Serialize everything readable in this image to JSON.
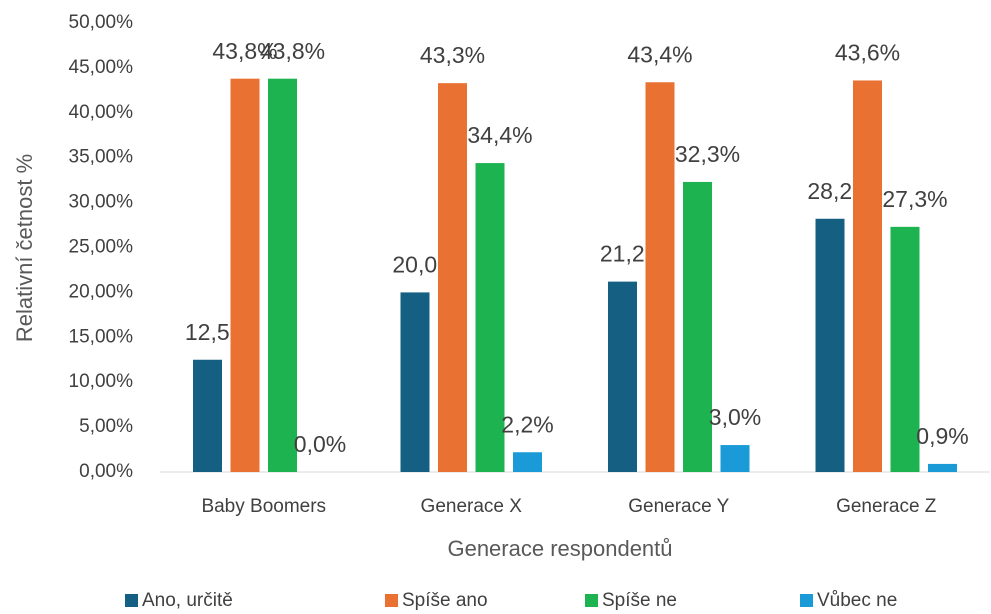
{
  "chart_data": {
    "type": "bar",
    "x_label": "Generace respondentů",
    "y_label": "Relativní četnost %",
    "categories": [
      "Baby Boomers",
      "Generace X",
      "Generace Y",
      "Generace Z"
    ],
    "series": [
      {
        "name": "Ano, určitě",
        "color": "#156082",
        "values": [
          12.5,
          20.0,
          21.2,
          28.2
        ],
        "value_labels": [
          "12,5%",
          "20,0%",
          "21,2%",
          "28,2%"
        ]
      },
      {
        "name": "Spíše ano",
        "color": "#e97132",
        "values": [
          43.8,
          43.3,
          43.4,
          43.6
        ],
        "value_labels": [
          "43,8%",
          "43,3%",
          "43,4%",
          "43,6%"
        ]
      },
      {
        "name": "Spíše ne",
        "color": "#1db351",
        "values": [
          43.8,
          34.4,
          32.3,
          27.3
        ],
        "value_labels": [
          "43,8%",
          "34,4%",
          "32,3%",
          "27,3%"
        ]
      },
      {
        "name": "Vůbec ne",
        "color": "#1a9bd7",
        "values": [
          0.0,
          2.2,
          3.0,
          0.9
        ],
        "value_labels": [
          "0,0%",
          "2,2%",
          "3,0%",
          "0,9%"
        ]
      }
    ],
    "ylim": [
      0,
      50
    ],
    "yticks": [
      {
        "value": 0,
        "label": "0,00%"
      },
      {
        "value": 5,
        "label": "5,00%"
      },
      {
        "value": 10,
        "label": "10,00%"
      },
      {
        "value": 15,
        "label": "15,00%"
      },
      {
        "value": 20,
        "label": "20,00%"
      },
      {
        "value": 25,
        "label": "25,00%"
      },
      {
        "value": 30,
        "label": "30,00%"
      },
      {
        "value": 35,
        "label": "35,00%"
      },
      {
        "value": 40,
        "label": "40,00%"
      },
      {
        "value": 45,
        "label": "45,00%"
      },
      {
        "value": 50,
        "label": "50,00%"
      }
    ],
    "grid": false,
    "legend": "bottom"
  }
}
